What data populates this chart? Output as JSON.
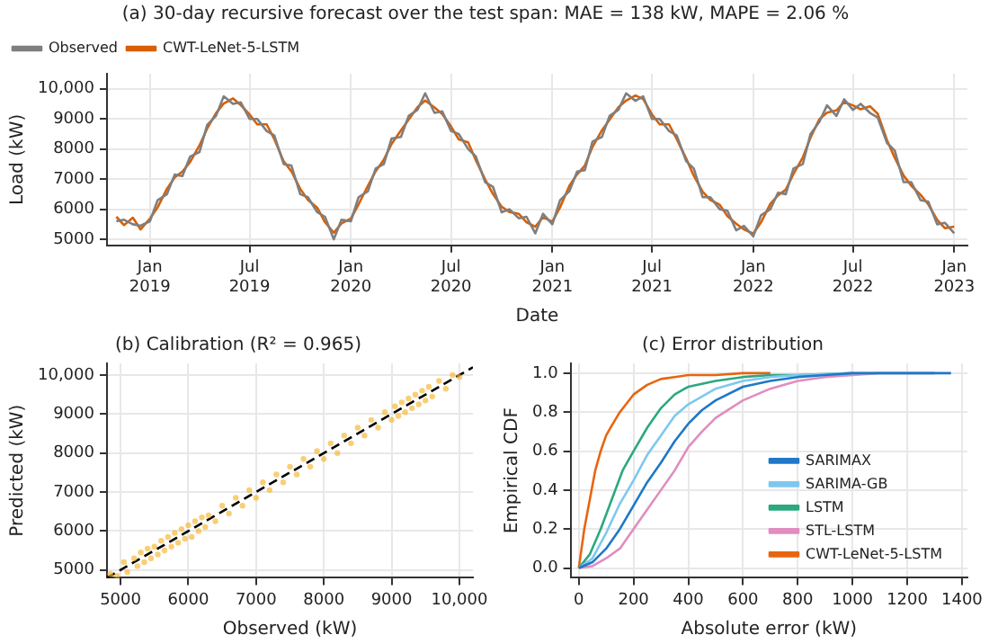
{
  "chart_data": [
    {
      "type": "line",
      "title": "(a) 30-day recursive forecast over the test span: MAE = 138 kW, MAPE = 2.06 %",
      "xlabel": "Date",
      "ylabel": "Load (kW)",
      "x": [
        "2018-11-01",
        "2018-11-15",
        "2018-12-01",
        "2018-12-15",
        "2019-01-01",
        "2019-01-15",
        "2019-02-01",
        "2019-02-15",
        "2019-03-01",
        "2019-03-15",
        "2019-04-01",
        "2019-04-15",
        "2019-05-01",
        "2019-05-15",
        "2019-06-01",
        "2019-06-15",
        "2019-07-01",
        "2019-07-15",
        "2019-08-01",
        "2019-08-15",
        "2019-09-01",
        "2019-09-15",
        "2019-10-01",
        "2019-10-15",
        "2019-11-01",
        "2019-11-15",
        "2019-12-01",
        "2019-12-15",
        "2020-01-01",
        "2020-01-15",
        "2020-02-01",
        "2020-02-15",
        "2020-03-01",
        "2020-03-15",
        "2020-04-01",
        "2020-04-15",
        "2020-05-01",
        "2020-05-15",
        "2020-06-01",
        "2020-06-15",
        "2020-07-01",
        "2020-07-15",
        "2020-08-01",
        "2020-08-15",
        "2020-09-01",
        "2020-09-15",
        "2020-10-01",
        "2020-10-15",
        "2020-11-01",
        "2020-11-15",
        "2020-12-01",
        "2020-12-15",
        "2021-01-01",
        "2021-01-15",
        "2021-02-01",
        "2021-02-15",
        "2021-03-01",
        "2021-03-15",
        "2021-04-01",
        "2021-04-15",
        "2021-05-01",
        "2021-05-15",
        "2021-06-01",
        "2021-06-15",
        "2021-07-01",
        "2021-07-15",
        "2021-08-01",
        "2021-08-15",
        "2021-09-01",
        "2021-09-15",
        "2021-10-01",
        "2021-10-15",
        "2021-11-01",
        "2021-11-15",
        "2021-12-01",
        "2021-12-15",
        "2022-01-01",
        "2022-01-15",
        "2022-02-01",
        "2022-02-15",
        "2022-03-01",
        "2022-03-15",
        "2022-04-01",
        "2022-04-15",
        "2022-05-01",
        "2022-05-15",
        "2022-06-01",
        "2022-06-15",
        "2022-07-01",
        "2022-07-15",
        "2022-08-01",
        "2022-08-15",
        "2022-09-01",
        "2022-09-15",
        "2022-10-01",
        "2022-10-15",
        "2022-11-01",
        "2022-11-15",
        "2022-12-01",
        "2022-12-15",
        "2023-01-01"
      ],
      "series": [
        {
          "name": "Observed",
          "color": "#7f7f7f",
          "values": [
            5600,
            5650,
            5500,
            5450,
            5600,
            6300,
            6500,
            7150,
            7100,
            7750,
            7900,
            8800,
            9100,
            9750,
            9500,
            9550,
            9000,
            9000,
            8600,
            8450,
            7500,
            7450,
            6500,
            6400,
            5900,
            5750,
            5000,
            5650,
            5600,
            6400,
            6600,
            7350,
            7500,
            8350,
            8400,
            9100,
            9300,
            9850,
            9200,
            9250,
            8600,
            8500,
            8000,
            7750,
            6900,
            6750,
            5900,
            6000,
            5700,
            5750,
            5200,
            5850,
            5500,
            6300,
            6600,
            7250,
            7300,
            8250,
            8400,
            9100,
            9300,
            9850,
            9600,
            9750,
            9000,
            9000,
            8600,
            8450,
            7600,
            7350,
            6400,
            6400,
            6000,
            5950,
            5300,
            5450,
            5100,
            5800,
            6000,
            6550,
            6500,
            7350,
            7500,
            8500,
            8900,
            9450,
            9100,
            9650,
            9300,
            9500,
            9200,
            9050,
            8200,
            7950,
            6900,
            6900,
            6300,
            6250,
            5500,
            5550,
            5200
          ]
        },
        {
          "name": "CWT-LeNet-5-LSTM",
          "color": "#d95f02",
          "values": [
            5750,
            5470,
            5720,
            5330,
            5690,
            6060,
            6680,
            7060,
            7250,
            7570,
            8120,
            8680,
            9190,
            9510,
            9680,
            9460,
            9150,
            8820,
            8820,
            8330,
            7590,
            7260,
            6680,
            6310,
            6050,
            5570,
            5220,
            5530,
            5690,
            6160,
            6780,
            7260,
            7650,
            8170,
            8620,
            8980,
            9390,
            9610,
            9380,
            9160,
            8750,
            8320,
            8220,
            7630,
            6990,
            6510,
            6080,
            5910,
            5850,
            5570,
            5420,
            5730,
            5590,
            6060,
            6780,
            7160,
            7450,
            8070,
            8620,
            8980,
            9390,
            9610,
            9780,
            9660,
            9150,
            8820,
            8820,
            8330,
            7690,
            7110,
            6580,
            6310,
            6150,
            5770,
            5520,
            5330,
            5190,
            5560,
            6180,
            6460,
            6650,
            7170,
            7720,
            8380,
            8990,
            9210,
            9280,
            9560,
            9450,
            9320,
            9420,
            9170,
            8290,
            7710,
            7120,
            6780,
            6480,
            6160,
            5650,
            5370,
            5420
          ]
        }
      ],
      "xlim": [
        "2018-10-15",
        "2023-01-25"
      ],
      "xticks": [
        {
          "value": "2019-01-01",
          "label": "Jan 2019"
        },
        {
          "value": "2019-07-01",
          "label": "Jul 2019"
        },
        {
          "value": "2020-01-01",
          "label": "Jan 2020"
        },
        {
          "value": "2020-07-01",
          "label": "Jul 2020"
        },
        {
          "value": "2021-01-01",
          "label": "Jan 2021"
        },
        {
          "value": "2021-07-01",
          "label": "Jul 2021"
        },
        {
          "value": "2022-01-01",
          "label": "Jan 2022"
        },
        {
          "value": "2022-07-01",
          "label": "Jul 2022"
        },
        {
          "value": "2023-01-01",
          "label": "Jan 2023"
        }
      ],
      "ylim": [
        4800,
        10500
      ],
      "yticks": [
        5000,
        6000,
        7000,
        8000,
        9000,
        {
          "value": 10000,
          "label": "10,000"
        }
      ],
      "grid": true,
      "legend": "top left",
      "marker": "none",
      "line_style": "solid"
    },
    {
      "type": "scatter",
      "title": "(b) Calibration (R² = 0.965)",
      "xlabel": "Observed (kW)",
      "ylabel": "Predicted (kW)",
      "series": [
        {
          "color": "#f5b731",
          "x": [
            4850,
            4950,
            5050,
            5100,
            5200,
            5250,
            5300,
            5350,
            5400,
            5450,
            5500,
            5550,
            5600,
            5650,
            5700,
            5750,
            5800,
            5850,
            5900,
            5950,
            6000,
            6050,
            6100,
            6150,
            6200,
            6250,
            6300,
            6400,
            6500,
            6600,
            6700,
            6800,
            6900,
            7000,
            7100,
            7200,
            7300,
            7400,
            7500,
            7600,
            7700,
            7800,
            7900,
            8000,
            8100,
            8200,
            8300,
            8400,
            8500,
            8600,
            8700,
            8800,
            8900,
            9000,
            9050,
            9100,
            9150,
            9200,
            9250,
            9300,
            9350,
            9400,
            9450,
            9500,
            9550,
            9600,
            9700,
            9800,
            9900,
            10000
          ],
          "values": [
            4900,
            4850,
            5200,
            4950,
            5300,
            5100,
            5450,
            5200,
            5550,
            5300,
            5600,
            5400,
            5750,
            5500,
            5850,
            5600,
            5950,
            5700,
            6050,
            5800,
            6150,
            5850,
            6250,
            6000,
            6350,
            6100,
            6400,
            6250,
            6650,
            6450,
            6850,
            6650,
            7050,
            6850,
            7250,
            7050,
            7450,
            7250,
            7650,
            7450,
            7850,
            7650,
            8050,
            7850,
            8250,
            8000,
            8450,
            8250,
            8650,
            8450,
            8850,
            8650,
            9050,
            8850,
            9200,
            8950,
            9300,
            9050,
            9400,
            9150,
            9500,
            9250,
            9600,
            9350,
            9700,
            9450,
            9850,
            9650,
            10000,
            9950
          ]
        },
        {
          "type": "line",
          "color": "#000000",
          "x": [
            4800,
            10200
          ],
          "values": [
            4800,
            10200
          ],
          "line_style": "dashed",
          "marker": "none"
        }
      ],
      "xlim": [
        4800,
        10200
      ],
      "xticks": [
        5000,
        6000,
        7000,
        8000,
        9000,
        {
          "value": 10000,
          "label": "10,000"
        }
      ],
      "ylim": [
        4800,
        10300
      ],
      "yticks": [
        5000,
        6000,
        7000,
        8000,
        9000,
        {
          "value": 10000,
          "label": "10,000"
        }
      ],
      "grid": true,
      "marker": "circle"
    },
    {
      "type": "line",
      "title": "(c) Error distribution",
      "xlabel": "Absolute error (kW)",
      "ylabel": "Empirical CDF",
      "series": [
        {
          "name": "SARIMAX",
          "color": "#1f78c8",
          "x": [
            0,
            50,
            100,
            150,
            200,
            250,
            300,
            350,
            400,
            450,
            500,
            600,
            700,
            800,
            900,
            1000,
            1360
          ],
          "values": [
            0,
            0.03,
            0.1,
            0.2,
            0.32,
            0.44,
            0.54,
            0.65,
            0.74,
            0.81,
            0.86,
            0.93,
            0.96,
            0.98,
            0.99,
            1,
            1
          ]
        },
        {
          "name": "SARIMA-GB",
          "color": "#7ec8f0",
          "x": [
            0,
            50,
            100,
            150,
            200,
            250,
            300,
            350,
            400,
            500,
            600,
            700,
            800,
            1000,
            1300
          ],
          "values": [
            0,
            0.05,
            0.18,
            0.33,
            0.45,
            0.58,
            0.68,
            0.78,
            0.84,
            0.92,
            0.96,
            0.98,
            0.99,
            1,
            1
          ]
        },
        {
          "name": "LSTM",
          "color": "#2ca87f",
          "x": [
            0,
            40,
            80,
            120,
            160,
            200,
            250,
            300,
            350,
            400,
            500,
            600,
            700,
            800,
            1000
          ],
          "values": [
            0,
            0.07,
            0.2,
            0.35,
            0.5,
            0.6,
            0.72,
            0.82,
            0.89,
            0.93,
            0.96,
            0.98,
            0.99,
            0.99,
            1
          ]
        },
        {
          "name": "STL-LSTM",
          "color": "#e08dc0",
          "x": [
            0,
            50,
            100,
            150,
            200,
            250,
            300,
            350,
            400,
            450,
            500,
            600,
            700,
            800,
            900,
            1000,
            1100,
            1300
          ],
          "values": [
            0,
            0.01,
            0.05,
            0.1,
            0.2,
            0.3,
            0.4,
            0.5,
            0.62,
            0.7,
            0.77,
            0.86,
            0.92,
            0.96,
            0.98,
            0.99,
            1,
            1
          ]
        },
        {
          "name": "CWT-LeNet-5-LSTM",
          "color": "#e8650f",
          "x": [
            0,
            20,
            40,
            60,
            80,
            100,
            120,
            150,
            200,
            250,
            300,
            350,
            400,
            500,
            600,
            700
          ],
          "values": [
            0,
            0.2,
            0.35,
            0.5,
            0.6,
            0.68,
            0.73,
            0.8,
            0.89,
            0.94,
            0.97,
            0.98,
            0.99,
            0.99,
            1,
            1
          ]
        }
      ],
      "xlim": [
        -30,
        1420
      ],
      "xticks": [
        0,
        200,
        400,
        600,
        800,
        1000,
        1200,
        1400
      ],
      "ylim": [
        -0.05,
        1.05
      ],
      "yticks": [
        {
          "value": 0,
          "label": "0.0"
        },
        {
          "value": 0.2,
          "label": "0.2"
        },
        {
          "value": 0.4,
          "label": "0.4"
        },
        {
          "value": 0.6,
          "label": "0.6"
        },
        {
          "value": 0.8,
          "label": "0.8"
        },
        {
          "value": 1,
          "label": "1.0"
        }
      ],
      "grid": true,
      "legend": "bottom right",
      "marker": "none",
      "line_style": "solid"
    }
  ]
}
